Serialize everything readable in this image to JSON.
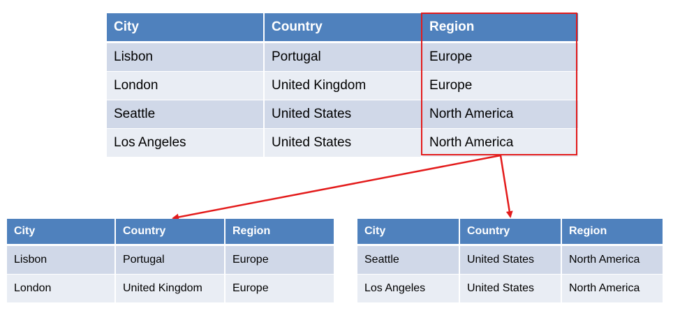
{
  "main_table": {
    "headers": [
      "City",
      "Country",
      "Region"
    ],
    "rows": [
      [
        "Lisbon",
        "Portugal",
        "Europe"
      ],
      [
        "London",
        "United Kingdom",
        "Europe"
      ],
      [
        "Seattle",
        "United States",
        "North America"
      ],
      [
        "Los Angeles",
        "United States",
        "North America"
      ]
    ]
  },
  "left_table": {
    "headers": [
      "City",
      "Country",
      "Region"
    ],
    "rows": [
      [
        "Lisbon",
        "Portugal",
        "Europe"
      ],
      [
        "London",
        "United Kingdom",
        "Europe"
      ]
    ]
  },
  "right_table": {
    "headers": [
      "City",
      "Country",
      "Region"
    ],
    "rows": [
      [
        "Seattle",
        "United States",
        "North America"
      ],
      [
        "Los Angeles",
        "United States",
        "North America"
      ]
    ]
  },
  "colors": {
    "header_bg": "#4f81bd",
    "row_odd": "#d0d8e8",
    "row_even": "#e9edf4",
    "highlight": "#e31b1b"
  }
}
